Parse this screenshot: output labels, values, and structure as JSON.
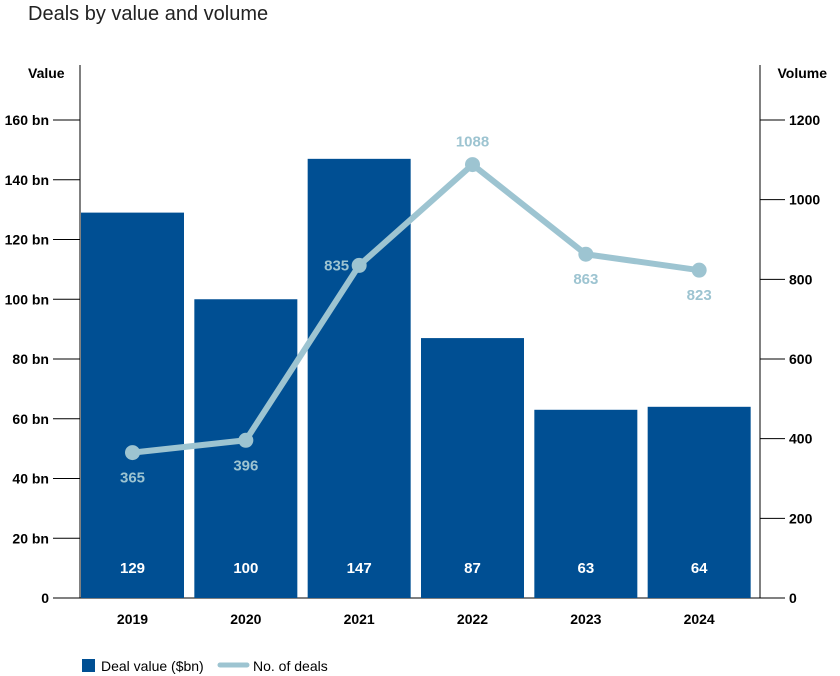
{
  "chart_data": {
    "type": "bar",
    "title": "Deals by value and volume",
    "categories": [
      "2019",
      "2020",
      "2021",
      "2022",
      "2023",
      "2024"
    ],
    "y_left": {
      "label": "Value",
      "ylim": [
        0,
        160
      ],
      "ticks": [
        0,
        20,
        40,
        60,
        80,
        100,
        120,
        140,
        160
      ],
      "tick_labels": [
        "0",
        "20 bn",
        "40 bn",
        "60 bn",
        "80 bn",
        "100 bn",
        "120 bn",
        "140 bn",
        "160 bn"
      ]
    },
    "y_right": {
      "label": "Volume",
      "ylim": [
        0,
        1200
      ],
      "ticks": [
        0,
        200,
        400,
        600,
        800,
        1000,
        1200
      ],
      "tick_labels": [
        "0",
        "200",
        "400",
        "600",
        "800",
        "1000",
        "1200"
      ]
    },
    "series": [
      {
        "name": "Deal value ($bn)",
        "type": "bar",
        "axis": "left",
        "color": "#004f93",
        "values": [
          129,
          100,
          147,
          87,
          63,
          64
        ],
        "labels": [
          "129",
          "100",
          "147",
          "87",
          "63",
          "64"
        ]
      },
      {
        "name": "No. of deals",
        "type": "line",
        "axis": "right",
        "color": "#9dc4d1",
        "values": [
          365,
          396,
          835,
          1088,
          863,
          823
        ],
        "labels": [
          "365",
          "396",
          "835",
          "1088",
          "863",
          "823"
        ],
        "label_positions": [
          "below",
          "below",
          "left",
          "above",
          "below",
          "below"
        ]
      }
    ],
    "grid": false,
    "legend": "bottom-left"
  }
}
